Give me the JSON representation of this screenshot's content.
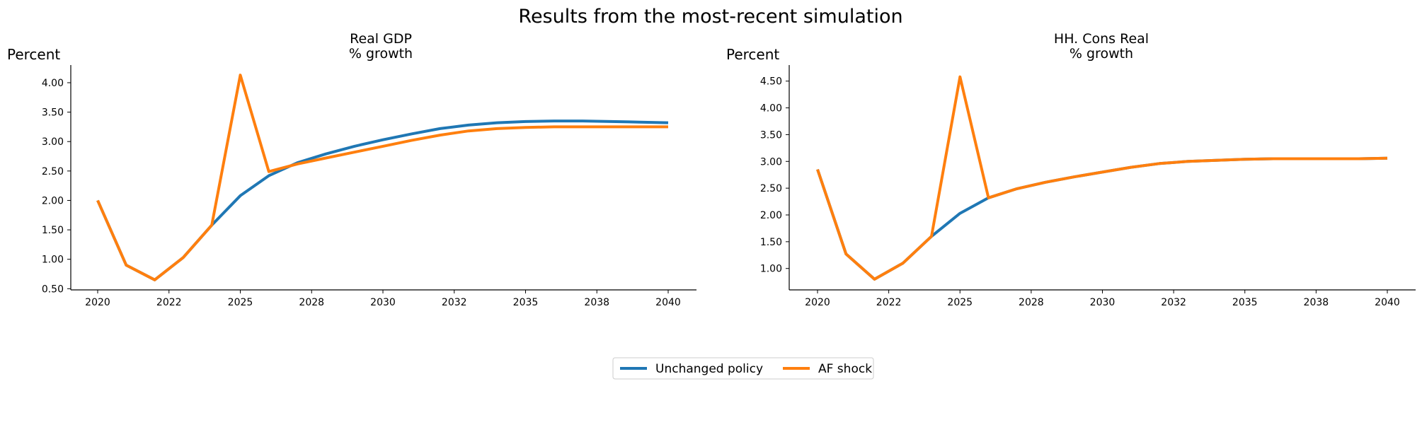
{
  "figure": {
    "suptitle": "Results from the most-recent simulation",
    "colors": {
      "unchanged": "#1f77b4",
      "shock": "#ff7f0e",
      "axis": "#000000"
    }
  },
  "legend": {
    "placement": "bottom-center",
    "entries": [
      {
        "name": "Unchanged policy",
        "color": "#1f77b4"
      },
      {
        "name": "AF shock",
        "color": "#ff7f0e"
      }
    ]
  },
  "chart_data": [
    {
      "type": "line",
      "title": "Real GDP\n % growth",
      "ylabel": "Percent",
      "xlabel": "",
      "xlim": [
        2020,
        2040
      ],
      "xticks": [
        2020,
        2022.5,
        2025,
        2027.5,
        2030,
        2032.5,
        2035,
        2037.5,
        2040
      ],
      "xtick_labels": [
        "2020",
        "2022",
        "2025",
        "2028",
        "2030",
        "2032",
        "2035",
        "2038",
        "2040"
      ],
      "ylim": [
        0.48,
        4.3
      ],
      "yticks": [
        0.5,
        1.0,
        1.5,
        2.0,
        2.5,
        3.0,
        3.5,
        4.0
      ],
      "ytick_labels": [
        "0.50",
        "1.00",
        "1.50",
        "2.00",
        "2.50",
        "3.00",
        "3.50",
        "4.00"
      ],
      "x": [
        2020,
        2021,
        2022,
        2023,
        2024,
        2025,
        2026,
        2027,
        2028,
        2029,
        2030,
        2031,
        2032,
        2033,
        2034,
        2035,
        2036,
        2037,
        2038,
        2039,
        2040
      ],
      "series": [
        {
          "name": "Unchanged policy",
          "color": "#1f77b4",
          "values": [
            2.0,
            0.9,
            0.65,
            1.03,
            1.58,
            2.08,
            2.42,
            2.64,
            2.79,
            2.92,
            3.03,
            3.13,
            3.22,
            3.28,
            3.32,
            3.34,
            3.35,
            3.35,
            3.34,
            3.33,
            3.32
          ]
        },
        {
          "name": "AF shock",
          "color": "#ff7f0e",
          "values": [
            2.0,
            0.9,
            0.65,
            1.03,
            1.58,
            4.13,
            2.49,
            2.62,
            2.72,
            2.82,
            2.92,
            3.02,
            3.11,
            3.18,
            3.22,
            3.24,
            3.25,
            3.25,
            3.25,
            3.25,
            3.25
          ]
        }
      ]
    },
    {
      "type": "line",
      "title": "HH. Cons Real\n % growth",
      "ylabel": "Percent",
      "xlabel": "",
      "xlim": [
        2020,
        2040
      ],
      "xticks": [
        2020,
        2022.5,
        2025,
        2027.5,
        2030,
        2032.5,
        2035,
        2037.5,
        2040
      ],
      "xtick_labels": [
        "2020",
        "2022",
        "2025",
        "2028",
        "2030",
        "2032",
        "2035",
        "2038",
        "2040"
      ],
      "ylim": [
        0.6,
        4.8
      ],
      "yticks": [
        1.0,
        1.5,
        2.0,
        2.5,
        3.0,
        3.5,
        4.0,
        4.5
      ],
      "ytick_labels": [
        "1.00",
        "1.50",
        "2.00",
        "2.50",
        "3.00",
        "3.50",
        "4.00",
        "4.50"
      ],
      "x": [
        2020,
        2021,
        2022,
        2023,
        2024,
        2025,
        2026,
        2027,
        2028,
        2029,
        2030,
        2031,
        2032,
        2033,
        2034,
        2035,
        2036,
        2037,
        2038,
        2039,
        2040
      ],
      "series": [
        {
          "name": "Unchanged policy",
          "color": "#1f77b4",
          "values": [
            2.85,
            1.27,
            0.8,
            1.1,
            1.6,
            2.03,
            2.32,
            2.49,
            2.61,
            2.71,
            2.8,
            2.89,
            2.96,
            3.0,
            3.02,
            3.04,
            3.05,
            3.05,
            3.05,
            3.05,
            3.06
          ]
        },
        {
          "name": "AF shock",
          "color": "#ff7f0e",
          "values": [
            2.85,
            1.27,
            0.8,
            1.1,
            1.6,
            4.58,
            2.32,
            2.49,
            2.61,
            2.71,
            2.8,
            2.89,
            2.96,
            3.0,
            3.02,
            3.04,
            3.05,
            3.05,
            3.05,
            3.05,
            3.06
          ]
        }
      ]
    }
  ]
}
